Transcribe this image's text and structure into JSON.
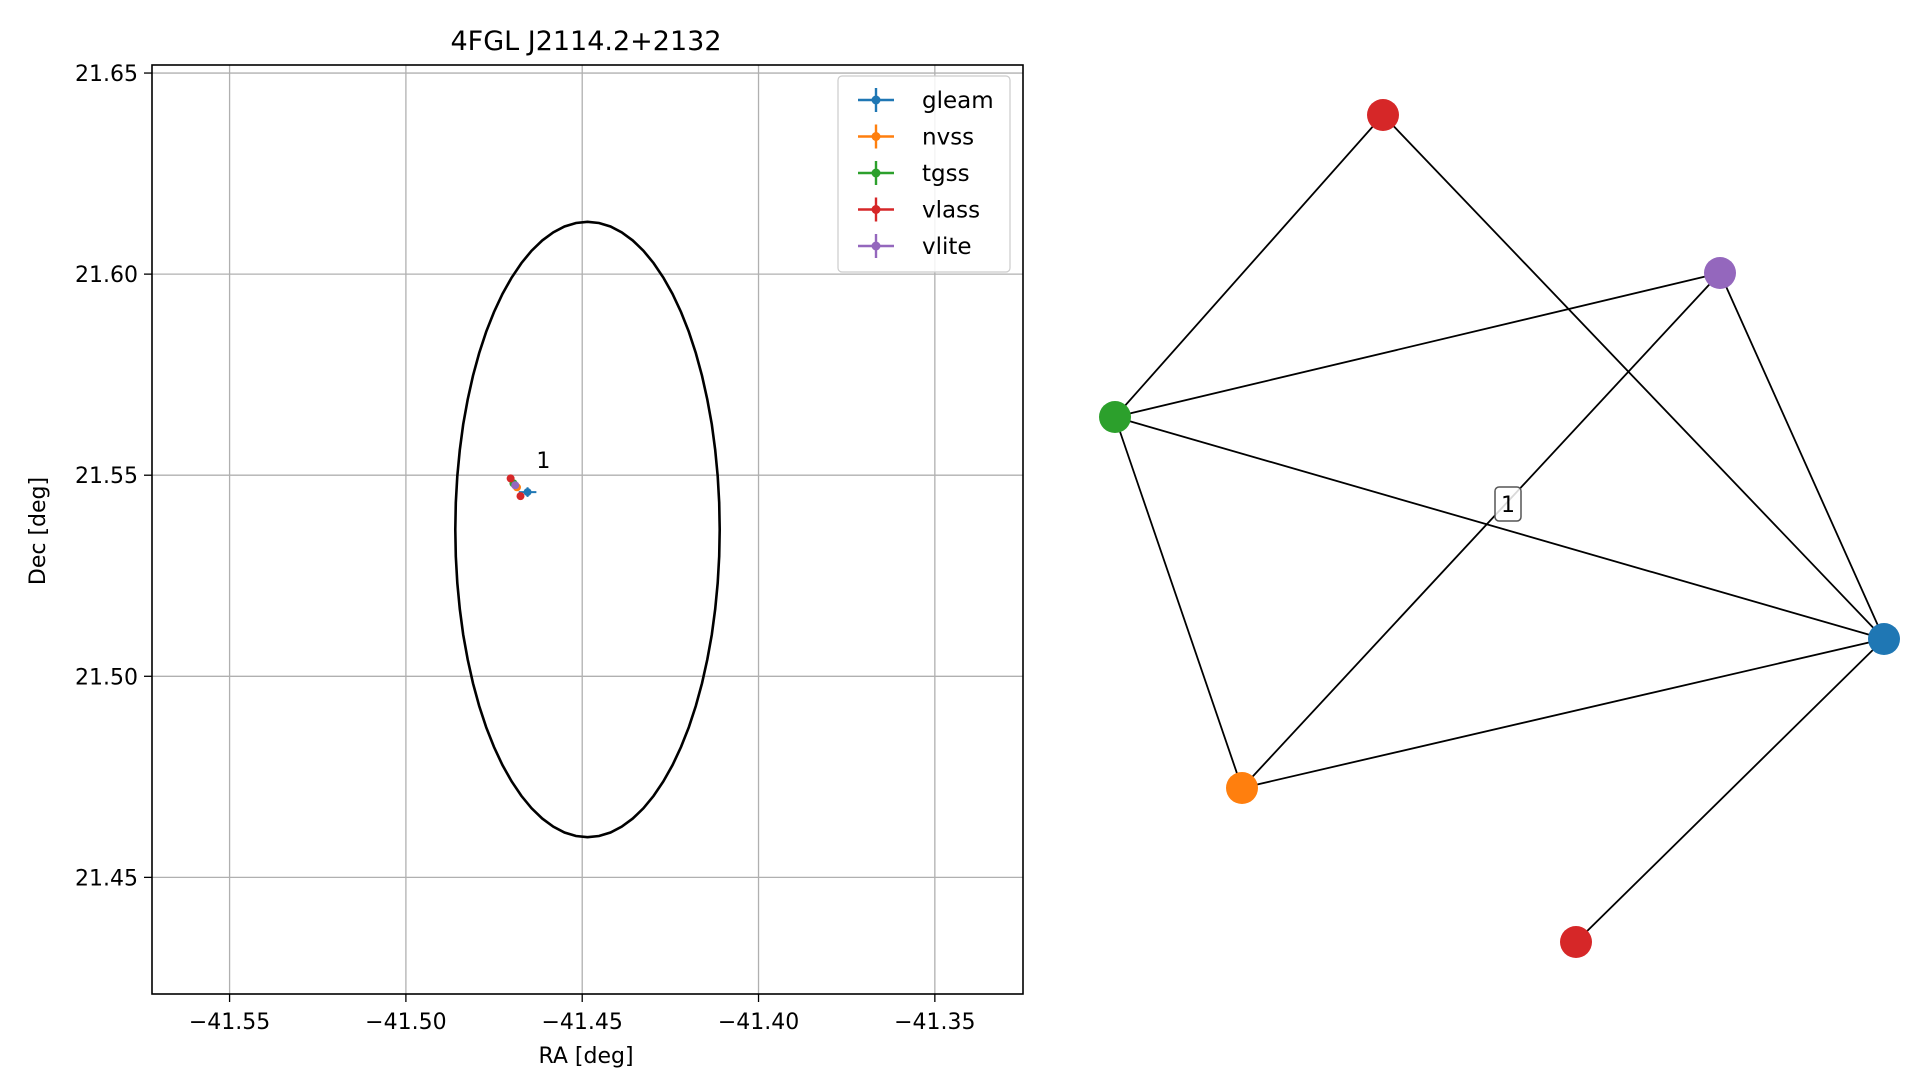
{
  "chart_data": [
    {
      "type": "scatter",
      "title": "4FGL J2114.2+2132",
      "xlabel": "RA [deg]",
      "ylabel": "Dec [deg]",
      "xlim": [
        -41.572,
        -41.325
      ],
      "ylim": [
        21.421,
        21.652
      ],
      "xticks": [
        -41.55,
        -41.5,
        -41.45,
        -41.4,
        -41.35
      ],
      "xtick_labels": [
        "−41.55",
        "−41.50",
        "−41.45",
        "−41.40",
        "−41.35"
      ],
      "yticks": [
        21.45,
        21.5,
        21.55,
        21.6,
        21.65
      ],
      "ytick_labels": [
        "21.45",
        "21.50",
        "21.55",
        "21.60",
        "21.65"
      ],
      "grid": true,
      "legend_position": "top-right",
      "series": [
        {
          "name": "gleam",
          "color": "#1f77b4",
          "points": [
            {
              "x": -41.4655,
              "y": 21.5458,
              "xerr": 0.0025,
              "yerr": 0.0012
            }
          ]
        },
        {
          "name": "nvss",
          "color": "#ff7f0e",
          "points": [
            {
              "x": -41.4685,
              "y": 21.547,
              "xerr": 0.0008,
              "yerr": 0.0008
            }
          ]
        },
        {
          "name": "tgss",
          "color": "#2ca02c",
          "points": [
            {
              "x": -41.4695,
              "y": 21.548,
              "xerr": 0.0008,
              "yerr": 0.0008
            }
          ]
        },
        {
          "name": "vlass",
          "color": "#d62728",
          "points": [
            {
              "x": -41.4703,
              "y": 21.5492,
              "xerr": 0.0003,
              "yerr": 0.0003
            },
            {
              "x": -41.4675,
              "y": 21.5448,
              "xerr": 0.0003,
              "yerr": 0.0003
            }
          ]
        },
        {
          "name": "vlite",
          "color": "#9467bd",
          "points": [
            {
              "x": -41.469,
              "y": 21.5475,
              "xerr": 0.0008,
              "yerr": 0.0008
            }
          ]
        }
      ],
      "annotations": [
        {
          "text": "1",
          "x": -41.463,
          "y": 21.5518
        }
      ],
      "ellipse": {
        "center_x": -41.4485,
        "center_y": 21.5365,
        "semi_major_ra": 0.0375,
        "semi_minor_dec": 0.0765,
        "color": "#000000"
      }
    },
    {
      "type": "network",
      "nodes": [
        {
          "id": "vlass_a",
          "color": "#d62728"
        },
        {
          "id": "vlite",
          "color": "#9467bd"
        },
        {
          "id": "tgss",
          "color": "#2ca02c"
        },
        {
          "id": "gleam",
          "color": "#1f77b4"
        },
        {
          "id": "nvss",
          "color": "#ff7f0e"
        },
        {
          "id": "vlass_b",
          "color": "#d62728"
        }
      ],
      "edges": [
        [
          "tgss",
          "vlass_a"
        ],
        [
          "vlass_a",
          "gleam"
        ],
        [
          "tgss",
          "vlite"
        ],
        [
          "vlite",
          "nvss"
        ],
        [
          "vlite",
          "gleam"
        ],
        [
          "tgss",
          "gleam"
        ],
        [
          "tgss",
          "nvss"
        ],
        [
          "nvss",
          "gleam"
        ],
        [
          "gleam",
          "vlass_b"
        ]
      ],
      "label": "1"
    }
  ]
}
